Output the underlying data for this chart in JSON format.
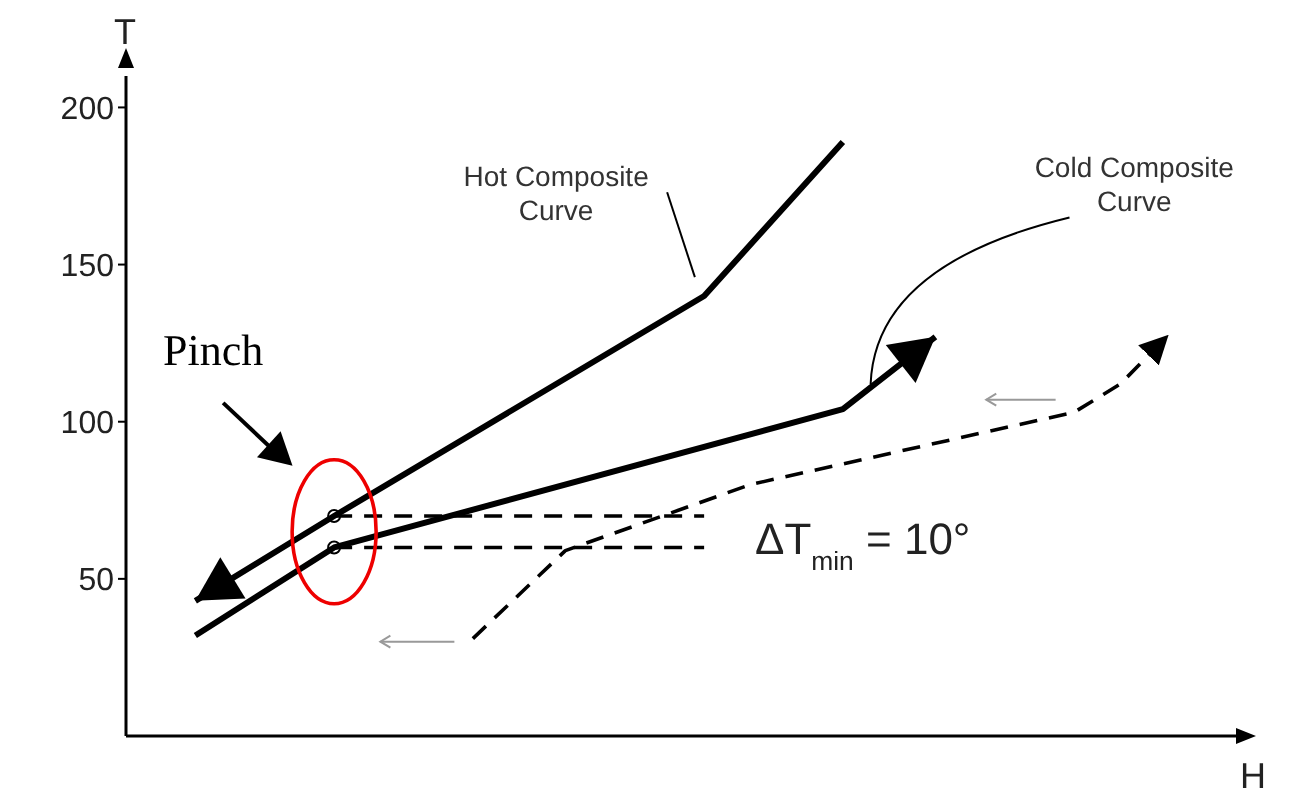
{
  "chart_data": {
    "type": "line",
    "xlabel": "H",
    "ylabel": "T",
    "categories": [
      null,
      null,
      null,
      null,
      null,
      null,
      null,
      null,
      null,
      null,
      null,
      null,
      null,
      null,
      null,
      null,
      null,
      null,
      null,
      null,
      null,
      null,
      null,
      null
    ],
    "series": [
      {
        "color": "#000000",
        "line_style": "solid",
        "values": [
          null,
          43,
          null,
          null,
          70,
          null,
          null,
          null,
          null,
          null,
          null,
          null,
          140,
          null,
          null,
          189,
          null,
          null,
          null,
          null,
          null,
          null,
          null,
          null
        ]
      },
      {
        "color": "#000000",
        "line_style": "solid",
        "values": [
          null,
          32,
          null,
          null,
          60,
          null,
          null,
          null,
          null,
          null,
          null,
          null,
          null,
          null,
          null,
          104,
          null,
          127,
          null,
          null,
          null,
          null,
          null,
          null
        ]
      },
      {
        "color": "#000000",
        "line_style": "dashed",
        "values": [
          null,
          null,
          null,
          null,
          null,
          null,
          null,
          31,
          null,
          59,
          null,
          null,
          null,
          80,
          null,
          null,
          null,
          null,
          null,
          null,
          103,
          112,
          127,
          null
        ]
      },
      {
        "color": "#000000",
        "line_style": "dashed",
        "values": [
          null,
          null,
          null,
          null,
          70,
          null,
          null,
          null,
          null,
          null,
          null,
          null,
          70,
          null,
          null,
          null,
          null,
          null,
          null,
          null,
          null,
          null,
          null,
          null
        ]
      },
      {
        "color": "#000000",
        "line_style": "dashed",
        "values": [
          null,
          null,
          null,
          null,
          60,
          null,
          null,
          null,
          null,
          null,
          null,
          null,
          60,
          null,
          null,
          null,
          null,
          null,
          null,
          null,
          null,
          null,
          null,
          null
        ]
      }
    ],
    "ylim": [
      0,
      210
    ],
    "yticks": [
      50,
      100,
      150,
      200
    ],
    "tick_labels": "y",
    "grid": false,
    "annotations": [
      "Hot Composite Curve",
      "Cold Composite Curve",
      "Pinch",
      "ΔT$_{min}$ = 10°"
    ]
  }
}
